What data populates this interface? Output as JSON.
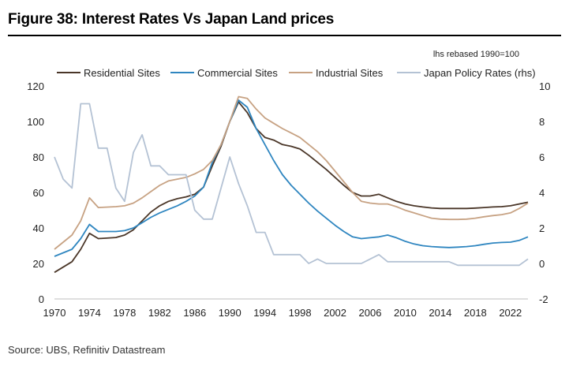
{
  "title": "Figure 38: Interest Rates Vs Japan Land prices",
  "source": "Source: UBS, Refinitiv Datastream",
  "chart_data": {
    "type": "line",
    "title": "Figure 38: Interest Rates Vs Japan Land prices",
    "note": "lhs rebased 1990=100",
    "xlim": [
      1970,
      2024
    ],
    "x_ticks": [
      1970,
      1974,
      1978,
      1982,
      1986,
      1990,
      1994,
      1998,
      2002,
      2006,
      2010,
      2014,
      2018,
      2022
    ],
    "ylim": [
      0,
      120
    ],
    "y_ticks": [
      0,
      20,
      40,
      60,
      80,
      100,
      120
    ],
    "y2lim": [
      -2,
      10
    ],
    "y2_ticks": [
      -2,
      0,
      2,
      4,
      6,
      8,
      10
    ],
    "gridlines": false,
    "legend_position": "top",
    "series": [
      {
        "name": "Residential Sites",
        "axis": "left",
        "color": "#4a3628",
        "x": [
          1970,
          1972,
          1973,
          1974,
          1975,
          1977,
          1978,
          1979,
          1980,
          1981,
          1982,
          1983,
          1984,
          1985,
          1986,
          1987,
          1988,
          1989,
          1990,
          1991,
          1992,
          1993,
          1994,
          1995,
          1996,
          1997,
          1998,
          1999,
          2000,
          2001,
          2002,
          2003,
          2004,
          2005,
          2006,
          2007,
          2008,
          2009,
          2010,
          2011,
          2012,
          2013,
          2014,
          2015,
          2016,
          2017,
          2018,
          2019,
          2020,
          2021,
          2022,
          2023,
          2024
        ],
        "values": [
          15,
          21,
          28,
          37,
          34,
          34.6,
          36,
          39,
          44,
          49,
          52.5,
          55,
          56.5,
          57.5,
          59,
          63,
          75,
          86,
          100,
          111,
          105,
          96,
          91,
          89.5,
          87,
          86,
          84.5,
          81,
          77,
          73,
          68.5,
          64,
          60,
          58,
          58,
          59,
          57,
          55,
          53.5,
          52.5,
          51.8,
          51.3,
          51,
          51,
          51,
          51,
          51.2,
          51.5,
          51.8,
          52,
          52.5,
          53.5,
          54.5
        ]
      },
      {
        "name": "Commercial Sites",
        "axis": "left",
        "color": "#2f86c0",
        "x": [
          1970,
          1971,
          1972,
          1973,
          1974,
          1975,
          1977,
          1978,
          1979,
          1980,
          1981,
          1982,
          1983,
          1984,
          1985,
          1986,
          1987,
          1988,
          1989,
          1990,
          1991,
          1992,
          1993,
          1994,
          1995,
          1996,
          1997,
          1998,
          1999,
          2000,
          2001,
          2002,
          2003,
          2004,
          2005,
          2006,
          2007,
          2008,
          2009,
          2010,
          2011,
          2012,
          2013,
          2014,
          2015,
          2016,
          2017,
          2018,
          2019,
          2020,
          2021,
          2022,
          2023,
          2024
        ],
        "values": [
          24,
          26,
          28,
          34,
          42,
          38,
          38,
          38.5,
          40,
          43,
          46,
          48.5,
          50.5,
          52.5,
          55,
          58,
          63,
          77,
          87,
          100,
          112,
          108,
          96,
          87,
          78,
          70,
          64,
          59,
          54,
          49.5,
          45.5,
          41.5,
          38,
          35,
          34,
          34.5,
          35,
          36,
          34.5,
          32.5,
          31,
          30,
          29.5,
          29.2,
          29,
          29.2,
          29.5,
          30,
          30.8,
          31.5,
          31.8,
          32,
          33,
          35
        ]
      },
      {
        "name": "Industrial Sites",
        "axis": "left",
        "color": "#c7a283",
        "x": [
          1970,
          1971,
          1972,
          1973,
          1974,
          1975,
          1977,
          1978,
          1979,
          1980,
          1981,
          1982,
          1983,
          1984,
          1985,
          1986,
          1987,
          1988,
          1989,
          1990,
          1991,
          1992,
          1993,
          1994,
          1995,
          1996,
          1997,
          1998,
          1999,
          2000,
          2001,
          2002,
          2003,
          2004,
          2005,
          2006,
          2007,
          2008,
          2009,
          2010,
          2011,
          2012,
          2013,
          2014,
          2015,
          2016,
          2017,
          2018,
          2019,
          2020,
          2021,
          2022,
          2023,
          2024
        ],
        "values": [
          28,
          32,
          36,
          44,
          57,
          51.5,
          52,
          52.5,
          54,
          57,
          60.5,
          64,
          66.5,
          67.5,
          68.5,
          70.5,
          73,
          78,
          87,
          100,
          114,
          113,
          107,
          102,
          99,
          96,
          93.5,
          91,
          87,
          83,
          78,
          72,
          66,
          60,
          55,
          54,
          53.5,
          53.5,
          52,
          50,
          48.5,
          47,
          45.5,
          45,
          44.8,
          44.8,
          45,
          45.5,
          46.3,
          47,
          47.5,
          48.5,
          51,
          54
        ]
      },
      {
        "name": "Japan Policy Rates (rhs)",
        "axis": "right",
        "color": "#b4c2d4",
        "x": [
          1970,
          1971,
          1972,
          1973,
          1974,
          1975,
          1976,
          1977,
          1978,
          1979,
          1980,
          1981,
          1982,
          1983,
          1984,
          1985,
          1986,
          1987,
          1988,
          1989,
          1990,
          1991,
          1992,
          1993,
          1994,
          1995,
          1996,
          1997,
          1998,
          1999,
          2000,
          2001,
          2002,
          2003,
          2004,
          2005,
          2006,
          2007,
          2008,
          2009,
          2010,
          2011,
          2012,
          2013,
          2014,
          2015,
          2016,
          2017,
          2018,
          2019,
          2020,
          2021,
          2022,
          2023,
          2024
        ],
        "values": [
          6,
          4.75,
          4.25,
          9,
          9,
          6.5,
          6.5,
          4.25,
          3.5,
          6.25,
          7.25,
          5.5,
          5.5,
          5,
          5,
          5,
          3,
          2.5,
          2.5,
          4.25,
          6,
          4.5,
          3.25,
          1.75,
          1.75,
          0.5,
          0.5,
          0.5,
          0.5,
          0,
          0.25,
          0,
          0,
          0,
          0,
          0,
          0.25,
          0.5,
          0.1,
          0.1,
          0.1,
          0.1,
          0.1,
          0.1,
          0.1,
          0.1,
          -0.1,
          -0.1,
          -0.1,
          -0.1,
          -0.1,
          -0.1,
          -0.1,
          -0.1,
          0.25
        ]
      }
    ]
  }
}
